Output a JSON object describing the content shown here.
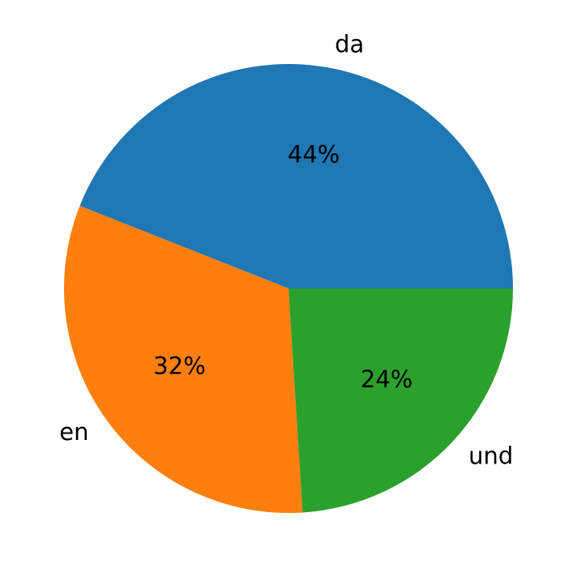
{
  "chart_data": {
    "type": "pie",
    "categories": [
      "da",
      "en",
      "und"
    ],
    "values": [
      44,
      32,
      24
    ],
    "value_labels": [
      "44%",
      "32%",
      "24%"
    ],
    "colors": [
      "#1f77b4",
      "#ff7f0e",
      "#2ca02c"
    ]
  }
}
